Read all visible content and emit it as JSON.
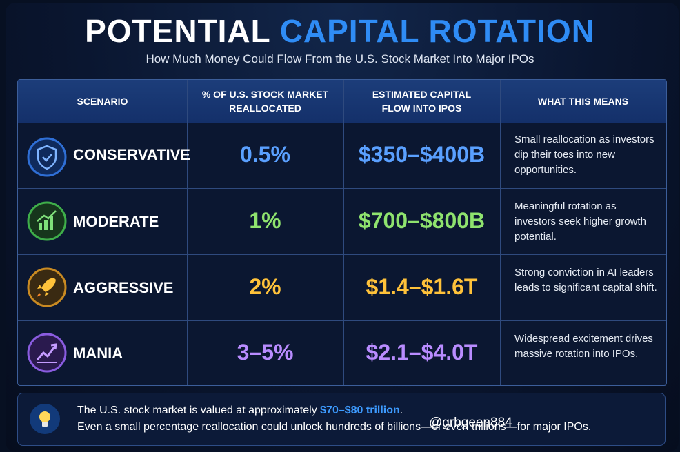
{
  "header": {
    "title_part1": "POTENTIAL",
    "title_part2": "CAPITAL ROTATION",
    "subtitle": "How Much Money Could Flow From the U.S. Stock Market Into Major IPOs"
  },
  "table": {
    "columns": [
      "SCENARIO",
      "% OF U.S. STOCK MARKET REALLOCATED",
      "ESTIMATED CAPITAL FLOW INTO IPOS",
      "WHAT THIS MEANS"
    ],
    "rows": [
      [
        "CONSERVATIVE",
        "0.5%",
        "$350–$400B",
        "Small reallocation as investors dip their toes into new opportunities."
      ],
      [
        "MODERATE",
        "1%",
        "$700–$800B",
        "Meaningful rotation as investors seek higher growth potential."
      ],
      [
        "AGGRESSIVE",
        "2%",
        "$1.4–$1.6T",
        "Strong conviction in AI leaders leads to significant capital shift."
      ],
      [
        "MANIA",
        "3–5%",
        "$2.1–$4.0T",
        "Widespread excitement drives massive rotation into IPOs."
      ]
    ]
  },
  "footer": {
    "text_before": "The U.S. stock market is valued at approximately",
    "highlight": "$70–$80 trillion",
    "text_after": ".",
    "line2": "Even a small percentage reallocation could unlock hundreds of billions—or even trillions—for major IPOs."
  },
  "watermark": "@grbgeen884"
}
